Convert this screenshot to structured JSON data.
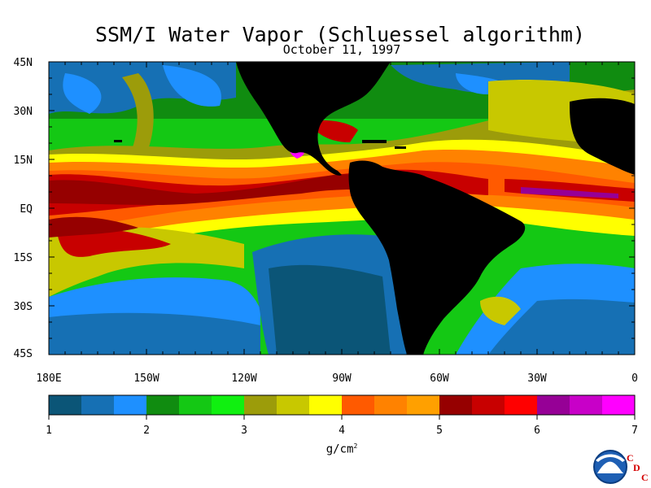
{
  "title": "SSM/I Water Vapor (Schluessel algorithm)",
  "date": "October 11, 1997",
  "lat_ticks": [
    "45N",
    "30N",
    "15N",
    "EQ",
    "15S",
    "30S",
    "45S"
  ],
  "lon_ticks": [
    "180E",
    "150W",
    "120W",
    "90W",
    "60W",
    "30W",
    "0"
  ],
  "colorbar": {
    "labels": [
      "1",
      "2",
      "3",
      "4",
      "5",
      "6",
      "7"
    ],
    "unit_base": "g/cm",
    "unit_exp": "2",
    "colors": [
      "#0b5577",
      "#1670b4",
      "#1e90ff",
      "#108c10",
      "#14c814",
      "#10f010",
      "#9c9c0a",
      "#c8c800",
      "#ffff00",
      "#ff5a00",
      "#ff8200",
      "#ffa000",
      "#960000",
      "#c80000",
      "#ff0000",
      "#960096",
      "#c800c8",
      "#ff00ff"
    ]
  },
  "logo": {
    "name": "NOAA",
    "letters": [
      "C",
      "D",
      "C"
    ]
  },
  "colors": {
    "land": "#000000",
    "frame": "#000000"
  }
}
